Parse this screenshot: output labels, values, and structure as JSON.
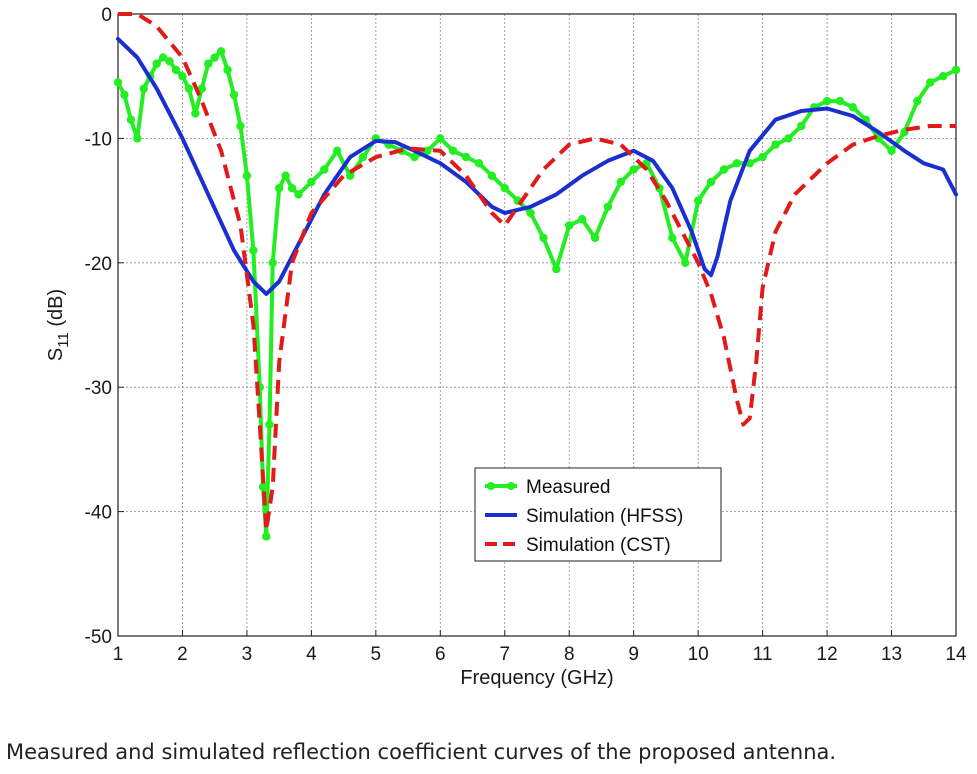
{
  "caption": "Measured and simulated reflection coefficient curves of the proposed antenna.",
  "chart_data": {
    "type": "line",
    "title": "",
    "xlabel": "Frequency (GHz)",
    "ylabel_main": "S",
    "ylabel_sub": "11",
    "ylabel_unit": " (dB)",
    "xlim": [
      1,
      14
    ],
    "ylim": [
      -50,
      0
    ],
    "grid": true,
    "legend_position": "center-bottom",
    "x_ticks": [
      1,
      2,
      3,
      4,
      5,
      6,
      7,
      8,
      9,
      10,
      11,
      12,
      13,
      14
    ],
    "y_ticks": [
      0,
      -10,
      -20,
      -30,
      -40,
      -50
    ],
    "series": [
      {
        "name": "Measured",
        "color": "#22ee22",
        "style": "solid-dots",
        "x": [
          1.0,
          1.1,
          1.2,
          1.3,
          1.4,
          1.5,
          1.6,
          1.7,
          1.8,
          1.9,
          2.0,
          2.1,
          2.2,
          2.3,
          2.4,
          2.5,
          2.6,
          2.7,
          2.8,
          2.9,
          3.0,
          3.1,
          3.2,
          3.25,
          3.3,
          3.35,
          3.4,
          3.5,
          3.6,
          3.7,
          3.8,
          4.0,
          4.2,
          4.4,
          4.6,
          4.8,
          5.0,
          5.2,
          5.4,
          5.6,
          5.8,
          6.0,
          6.2,
          6.4,
          6.6,
          6.8,
          7.0,
          7.2,
          7.4,
          7.6,
          7.8,
          8.0,
          8.2,
          8.4,
          8.6,
          8.8,
          9.0,
          9.2,
          9.4,
          9.6,
          9.8,
          10.0,
          10.2,
          10.4,
          10.6,
          10.8,
          11.0,
          11.2,
          11.4,
          11.6,
          11.8,
          12.0,
          12.2,
          12.4,
          12.6,
          12.8,
          13.0,
          13.2,
          13.4,
          13.6,
          13.8,
          14.0
        ],
        "y": [
          -5.5,
          -6.5,
          -8.5,
          -10.0,
          -6.0,
          -5.0,
          -4.0,
          -3.5,
          -3.8,
          -4.5,
          -5.0,
          -6.0,
          -8.0,
          -6.0,
          -4.0,
          -3.5,
          -3.0,
          -4.5,
          -6.5,
          -9.0,
          -13.0,
          -19.0,
          -30.0,
          -38.0,
          -42.0,
          -33.0,
          -20.0,
          -14.0,
          -13.0,
          -14.0,
          -14.5,
          -13.5,
          -12.5,
          -11.0,
          -13.0,
          -11.5,
          -10.0,
          -10.5,
          -11.0,
          -11.5,
          -11.0,
          -10.0,
          -11.0,
          -11.5,
          -12.0,
          -13.0,
          -14.0,
          -15.0,
          -16.0,
          -18.0,
          -20.5,
          -17.0,
          -16.5,
          -18.0,
          -15.5,
          -13.5,
          -12.5,
          -12.0,
          -14.0,
          -18.0,
          -20.0,
          -15.0,
          -13.5,
          -12.5,
          -12.0,
          -12.0,
          -11.5,
          -10.5,
          -10.0,
          -9.0,
          -7.5,
          -7.0,
          -7.0,
          -7.5,
          -8.5,
          -10.0,
          -11.0,
          -9.5,
          -7.0,
          -5.5,
          -5.0,
          -4.5
        ]
      },
      {
        "name": "Simulation (HFSS)",
        "color": "#1a2fd0",
        "style": "solid",
        "x": [
          1.0,
          1.3,
          1.6,
          2.0,
          2.4,
          2.8,
          3.1,
          3.3,
          3.5,
          3.8,
          4.2,
          4.6,
          5.0,
          5.3,
          5.6,
          6.0,
          6.4,
          6.8,
          7.0,
          7.4,
          7.8,
          8.2,
          8.6,
          9.0,
          9.3,
          9.6,
          9.9,
          10.1,
          10.2,
          10.3,
          10.5,
          10.8,
          11.2,
          11.6,
          12.0,
          12.4,
          12.8,
          13.2,
          13.5,
          13.8,
          14.0
        ],
        "y": [
          -2.0,
          -3.5,
          -6.0,
          -10.0,
          -14.5,
          -19.0,
          -21.5,
          -22.5,
          -21.5,
          -18.5,
          -14.5,
          -11.5,
          -10.2,
          -10.3,
          -11.0,
          -12.0,
          -13.5,
          -15.5,
          -16.0,
          -15.5,
          -14.5,
          -13.0,
          -11.8,
          -11.0,
          -11.8,
          -14.0,
          -17.5,
          -20.5,
          -21.0,
          -19.5,
          -15.0,
          -11.0,
          -8.5,
          -7.8,
          -7.6,
          -8.2,
          -9.5,
          -11.0,
          -12.0,
          -12.5,
          -14.5
        ]
      },
      {
        "name": "Simulation (CST)",
        "color": "#e21a1a",
        "style": "dashed",
        "x": [
          1.0,
          1.3,
          1.6,
          2.0,
          2.3,
          2.6,
          2.9,
          3.1,
          3.2,
          3.3,
          3.4,
          3.5,
          3.7,
          4.0,
          4.5,
          5.0,
          5.5,
          6.0,
          6.4,
          6.8,
          7.0,
          7.2,
          7.6,
          8.0,
          8.4,
          8.8,
          9.2,
          9.5,
          9.8,
          10.0,
          10.2,
          10.4,
          10.6,
          10.7,
          10.8,
          10.9,
          11.0,
          11.2,
          11.5,
          12.0,
          12.4,
          12.8,
          13.2,
          13.6,
          14.0
        ],
        "y": [
          0.0,
          0.0,
          -1.0,
          -3.5,
          -7.0,
          -11.0,
          -17.0,
          -25.0,
          -33.0,
          -41.5,
          -38.0,
          -28.0,
          -20.0,
          -16.0,
          -13.0,
          -11.5,
          -10.8,
          -11.0,
          -13.0,
          -16.0,
          -17.0,
          -15.5,
          -12.5,
          -10.5,
          -10.0,
          -10.5,
          -12.5,
          -15.0,
          -18.0,
          -20.0,
          -22.5,
          -26.0,
          -31.0,
          -33.0,
          -32.5,
          -28.0,
          -22.0,
          -17.5,
          -14.5,
          -12.0,
          -10.5,
          -9.8,
          -9.3,
          -9.0,
          -9.0
        ]
      }
    ]
  }
}
